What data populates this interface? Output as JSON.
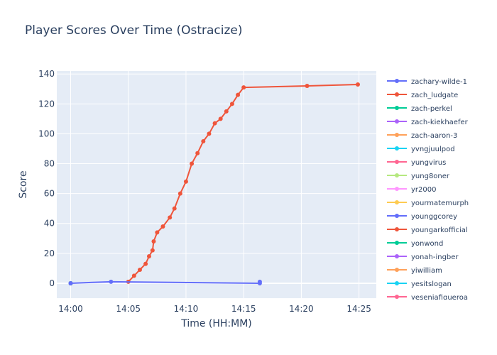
{
  "chart_data": {
    "type": "line",
    "title": "Player Scores Over Time (Ostracize)",
    "xlabel": "Time (HH:MM)",
    "ylabel": "Score",
    "x_ticks": [
      "14:00",
      "14:05",
      "14:10",
      "14:15",
      "14:20",
      "14:25"
    ],
    "y_ticks": [
      0,
      20,
      40,
      60,
      80,
      100,
      120,
      140
    ],
    "xlim_minutes_after_1400": [
      -1.2,
      26.5
    ],
    "ylim": [
      -10,
      142
    ],
    "grid": true,
    "legend_position": "right",
    "series": [
      {
        "name": "zachary-wilde-1",
        "color": "#636efa",
        "points": [
          [
            "14:00:00",
            0
          ],
          [
            "14:03:30",
            1
          ],
          [
            "14:16:24",
            0
          ],
          [
            "14:16:24",
            1
          ]
        ]
      },
      {
        "name": "zach_ludgate",
        "color": "#EF553B",
        "points": [
          [
            "14:05:00",
            1
          ],
          [
            "14:05:30",
            5
          ],
          [
            "14:06:00",
            9
          ],
          [
            "14:06:30",
            13
          ],
          [
            "14:06:48",
            18
          ],
          [
            "14:07:06",
            22
          ],
          [
            "14:07:12",
            28
          ],
          [
            "14:07:30",
            34
          ],
          [
            "14:08:00",
            38
          ],
          [
            "14:08:36",
            44
          ],
          [
            "14:09:00",
            50
          ],
          [
            "14:09:30",
            60
          ],
          [
            "14:10:00",
            68
          ],
          [
            "14:10:30",
            80
          ],
          [
            "14:11:00",
            87
          ],
          [
            "14:11:30",
            95
          ],
          [
            "14:12:00",
            100
          ],
          [
            "14:12:30",
            107
          ],
          [
            "14:13:00",
            110
          ],
          [
            "14:13:30",
            115
          ],
          [
            "14:14:00",
            120
          ],
          [
            "14:14:30",
            126
          ],
          [
            "14:15:00",
            131
          ],
          [
            "14:20:30",
            132
          ],
          [
            "14:24:54",
            133
          ]
        ]
      },
      {
        "name": "zach-perkel",
        "color": "#00cc96",
        "points": [
          [
            "14:00:00",
            0
          ]
        ]
      },
      {
        "name": "zach-kiekhaefer",
        "color": "#ab63fa",
        "points": [
          [
            "14:00:00",
            0
          ]
        ]
      },
      {
        "name": "zach-aaron-3",
        "color": "#FFA15A",
        "points": [
          [
            "14:00:00",
            0
          ]
        ]
      },
      {
        "name": "yvngjuulpod",
        "color": "#19d3f3",
        "points": [
          [
            "14:00:00",
            0
          ]
        ]
      },
      {
        "name": "yungvirus",
        "color": "#FF6692",
        "points": [
          [
            "14:00:00",
            0
          ]
        ]
      },
      {
        "name": "yung8oner",
        "color": "#B6E880",
        "points": [
          [
            "14:00:00",
            0
          ]
        ]
      },
      {
        "name": "yr2000",
        "color": "#FF97FF",
        "points": [
          [
            "14:00:00",
            0
          ]
        ]
      },
      {
        "name": "yourmatemurph",
        "color": "#FECB52",
        "points": [
          [
            "14:00:00",
            0
          ]
        ]
      },
      {
        "name": "younggcorey",
        "color": "#636efa",
        "points": [
          [
            "14:00:00",
            0
          ]
        ]
      },
      {
        "name": "youngarkofficial",
        "color": "#EF553B",
        "points": [
          [
            "14:00:00",
            0
          ]
        ]
      },
      {
        "name": "yonwond",
        "color": "#00cc96",
        "points": [
          [
            "14:00:00",
            0
          ]
        ]
      },
      {
        "name": "yonah-ingber",
        "color": "#ab63fa",
        "points": [
          [
            "14:00:00",
            0
          ]
        ]
      },
      {
        "name": "yiwilliam",
        "color": "#FFA15A",
        "points": [
          [
            "14:00:00",
            0
          ]
        ]
      },
      {
        "name": "yesitslogan",
        "color": "#19d3f3",
        "points": [
          [
            "14:00:00",
            0
          ]
        ]
      },
      {
        "name": "yeseniafigueroa",
        "color": "#FF6692",
        "points": [
          [
            "14:00:00",
            0
          ]
        ]
      }
    ]
  }
}
